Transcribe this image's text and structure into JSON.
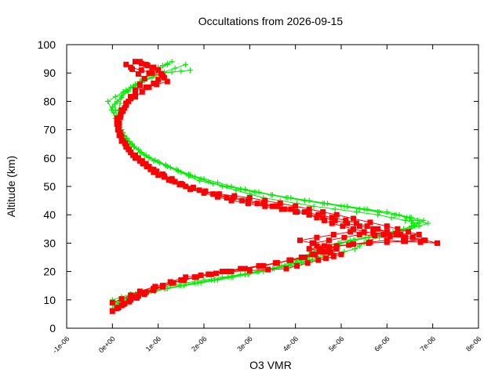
{
  "chart_data": {
    "type": "line",
    "title": "Occultations from 2026-09-15",
    "xlabel": "O3 VMR",
    "ylabel": "Altitude (km)",
    "xlim": [
      -1e-06,
      8e-06
    ],
    "ylim": [
      0,
      100
    ],
    "x_ticks": [
      -1e-06,
      0,
      1e-06,
      2e-06,
      3e-06,
      4e-06,
      5e-06,
      6e-06,
      7e-06,
      8e-06
    ],
    "x_tick_labels": [
      "-1e-06",
      "0e+00",
      "1e-06",
      "2e-06",
      "3e-06",
      "4e-06",
      "5e-06",
      "6e-06",
      "7e-06",
      "8e-06"
    ],
    "y_ticks": [
      0,
      10,
      20,
      30,
      40,
      50,
      60,
      70,
      80,
      90,
      100
    ],
    "y_tick_labels": [
      "0",
      "10",
      "20",
      "30",
      "40",
      "50",
      "60",
      "70",
      "80",
      "90",
      "100"
    ],
    "grid": false,
    "legend": "none",
    "series_colors": [
      "#00ee00",
      "#ff0000"
    ],
    "series": [
      {
        "marker": "plus",
        "color": "#00ee00",
        "profiles": [
          [
            [
              0.0,
              7
            ],
            [
              2e-07,
              10
            ],
            [
              8e-07,
              13
            ],
            [
              1.8e-06,
              16
            ],
            [
              2.9e-06,
              19
            ],
            [
              3.7e-06,
              22
            ],
            [
              4.2e-06,
              25
            ],
            [
              4.5e-06,
              28
            ],
            [
              5.2e-06,
              31
            ],
            [
              6.2e-06,
              34
            ],
            [
              6.7e-06,
              37
            ],
            [
              5.8e-06,
              40
            ],
            [
              4.4e-06,
              43
            ],
            [
              3.3e-06,
              46
            ],
            [
              2.4e-06,
              50
            ],
            [
              1.5e-06,
              55
            ],
            [
              8e-07,
              60
            ],
            [
              3e-07,
              66
            ],
            [
              1e-07,
              72
            ],
            [
              0.0,
              78
            ],
            [
              3e-07,
              84
            ],
            [
              9e-07,
              89
            ],
            [
              1.6e-06,
              93
            ]
          ],
          [
            [
              1e-07,
              8
            ],
            [
              4e-07,
              11
            ],
            [
              1.2e-06,
              14
            ],
            [
              2.3e-06,
              17
            ],
            [
              3.3e-06,
              20
            ],
            [
              4e-06,
              23
            ],
            [
              4.4e-06,
              26
            ],
            [
              4.6e-06,
              29
            ],
            [
              5.6e-06,
              32
            ],
            [
              6.5e-06,
              35
            ],
            [
              6.8e-06,
              38
            ],
            [
              6e-06,
              41
            ],
            [
              4.7e-06,
              44
            ],
            [
              3.5e-06,
              47
            ],
            [
              2.6e-06,
              50
            ],
            [
              1.7e-06,
              54
            ],
            [
              9e-07,
              59
            ],
            [
              4e-07,
              65
            ],
            [
              1.5e-07,
              71
            ],
            [
              -1e-07,
              80
            ],
            [
              4e-07,
              85
            ],
            [
              1.1e-06,
              90
            ],
            [
              1.7e-06,
              91
            ]
          ],
          [
            [
              5e-08,
              9
            ],
            [
              5e-07,
              12
            ],
            [
              1.5e-06,
              15
            ],
            [
              2.6e-06,
              18
            ],
            [
              3.5e-06,
              21
            ],
            [
              4.3e-06,
              24
            ],
            [
              4.8e-06,
              27
            ],
            [
              5e-06,
              30
            ],
            [
              5.9e-06,
              33
            ],
            [
              6.6e-06,
              36
            ],
            [
              6.5e-06,
              39
            ],
            [
              5.5e-06,
              42
            ],
            [
              4.2e-06,
              45
            ],
            [
              3.1e-06,
              48
            ],
            [
              2.2e-06,
              51
            ],
            [
              1.4e-06,
              56
            ],
            [
              7e-07,
              61
            ],
            [
              3e-07,
              67
            ],
            [
              1e-07,
              73
            ],
            [
              5e-08,
              79
            ],
            [
              5e-07,
              86
            ],
            [
              1e-06,
              92
            ],
            [
              1.3e-06,
              94
            ]
          ],
          [
            [
              0.0,
              10
            ],
            [
              6e-07,
              13
            ],
            [
              1.6e-06,
              16
            ],
            [
              2.8e-06,
              19
            ],
            [
              3.9e-06,
              22
            ],
            [
              4.6e-06,
              25
            ],
            [
              5.3e-06,
              28
            ],
            [
              5.6e-06,
              31
            ],
            [
              6.3e-06,
              34
            ],
            [
              6.9e-06,
              37
            ],
            [
              6.2e-06,
              40
            ],
            [
              5e-06,
              43
            ],
            [
              3.8e-06,
              46
            ],
            [
              2.8e-06,
              49
            ],
            [
              1.9e-06,
              52
            ],
            [
              1.2e-06,
              57
            ],
            [
              6e-07,
              62
            ],
            [
              2.5e-07,
              68
            ],
            [
              1e-07,
              74
            ],
            [
              2e-07,
              82
            ],
            [
              6e-07,
              87
            ],
            [
              1.2e-06,
              93
            ]
          ]
        ]
      },
      {
        "marker": "square",
        "color": "#ff0000",
        "profiles": [
          [
            [
              0.0,
              6
            ],
            [
              4e-07,
              10
            ],
            [
              9e-07,
              14
            ],
            [
              1.5e-06,
              17
            ],
            [
              2.4e-06,
              20
            ],
            [
              3.6e-06,
              23
            ],
            [
              4.4e-06,
              26
            ],
            [
              4.9e-06,
              29
            ],
            [
              6e-06,
              31
            ],
            [
              7.1e-06,
              30
            ],
            [
              6.3e-06,
              33
            ],
            [
              5.4e-06,
              36
            ],
            [
              4.6e-06,
              39
            ],
            [
              3.7e-06,
              42
            ],
            [
              2.6e-06,
              45
            ],
            [
              1.7e-06,
              49
            ],
            [
              1e-06,
              54
            ],
            [
              5e-07,
              60
            ],
            [
              2e-07,
              66
            ],
            [
              1e-07,
              72
            ],
            [
              3e-07,
              79
            ],
            [
              6e-07,
              86
            ],
            [
              9e-07,
              92
            ],
            [
              5e-07,
              94
            ]
          ],
          [
            [
              1e-07,
              7
            ],
            [
              5e-07,
              11
            ],
            [
              1.1e-06,
              15
            ],
            [
              1.8e-06,
              18
            ],
            [
              2.9e-06,
              21
            ],
            [
              3.9e-06,
              24
            ],
            [
              4.6e-06,
              27
            ],
            [
              4.4e-06,
              30
            ],
            [
              5.4e-06,
              33
            ],
            [
              6.4e-06,
              32
            ],
            [
              5.8e-06,
              35
            ],
            [
              5.1e-06,
              38
            ],
            [
              4.2e-06,
              41
            ],
            [
              3.3e-06,
              44
            ],
            [
              2.3e-06,
              47
            ],
            [
              1.5e-06,
              51
            ],
            [
              9e-07,
              56
            ],
            [
              4e-07,
              62
            ],
            [
              1.5e-07,
              68
            ],
            [
              1e-07,
              74
            ],
            [
              4e-07,
              81
            ],
            [
              7e-07,
              88
            ],
            [
              3e-07,
              93
            ]
          ],
          [
            [
              2e-07,
              8
            ],
            [
              7e-07,
              12
            ],
            [
              1.3e-06,
              16
            ],
            [
              2.1e-06,
              19
            ],
            [
              3.3e-06,
              22
            ],
            [
              4.2e-06,
              25
            ],
            [
              4.9e-06,
              28
            ],
            [
              4.1e-06,
              31
            ],
            [
              5.2e-06,
              34
            ],
            [
              6.7e-06,
              33
            ],
            [
              6e-06,
              36
            ],
            [
              4.9e-06,
              40
            ],
            [
              4e-06,
              43
            ],
            [
              3e-06,
              46
            ],
            [
              2e-06,
              48
            ],
            [
              1.3e-06,
              52
            ],
            [
              8e-07,
              57
            ],
            [
              3.5e-07,
              63
            ],
            [
              1.2e-07,
              70
            ],
            [
              2e-07,
              77
            ],
            [
              5e-07,
              84
            ],
            [
              1.2e-06,
              87
            ],
            [
              1e-06,
              91
            ],
            [
              6e-07,
              94
            ]
          ],
          [
            [
              0.0,
              9
            ],
            [
              6e-07,
              13
            ],
            [
              1.6e-06,
              18
            ],
            [
              2.6e-06,
              20
            ],
            [
              3.8e-06,
              21
            ],
            [
              4.5e-06,
              24
            ],
            [
              5e-06,
              26
            ],
            [
              4.3e-06,
              28
            ],
            [
              5.6e-06,
              30
            ],
            [
              6.8e-06,
              31
            ],
            [
              5.5e-06,
              34
            ],
            [
              4.8e-06,
              37
            ],
            [
              4.3e-06,
              40
            ],
            [
              3.5e-06,
              43
            ],
            [
              2.5e-06,
              46
            ],
            [
              1.6e-06,
              50
            ],
            [
              9e-07,
              55
            ],
            [
              4.5e-07,
              61
            ],
            [
              2e-07,
              67
            ],
            [
              1e-07,
              73
            ],
            [
              3.5e-07,
              80
            ],
            [
              8e-07,
              85
            ],
            [
              1.1e-06,
              89
            ],
            [
              4e-07,
              92
            ]
          ]
        ]
      }
    ]
  }
}
